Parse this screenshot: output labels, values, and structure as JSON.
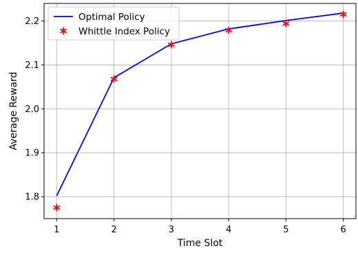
{
  "chart_data": {
    "type": "line",
    "xlabel": "Time Slot",
    "ylabel": "Average Reward",
    "x": [
      1,
      2,
      3,
      4,
      5,
      6
    ],
    "xlim": [
      0.78,
      6.22
    ],
    "ylim": [
      1.75,
      2.24
    ],
    "xticks": [
      1,
      2,
      3,
      4,
      5,
      6
    ],
    "yticks": [
      1.8,
      1.9,
      2.0,
      2.1,
      2.2
    ],
    "ytick_labels": [
      "1.8",
      "1.9",
      "2.0",
      "2.1",
      "2.2"
    ],
    "grid": true,
    "legend_position": "top-left",
    "series": [
      {
        "name": "Optimal Policy",
        "style": "line",
        "color": "#0000ff",
        "values": [
          1.802,
          2.071,
          2.148,
          2.182,
          2.201,
          2.218
        ]
      },
      {
        "name": "Whittle Index Policy",
        "style": "marker",
        "marker": "asterisk",
        "color": "#ff0000",
        "values": [
          1.775,
          2.068,
          2.146,
          2.179,
          2.194,
          2.215
        ]
      }
    ]
  }
}
